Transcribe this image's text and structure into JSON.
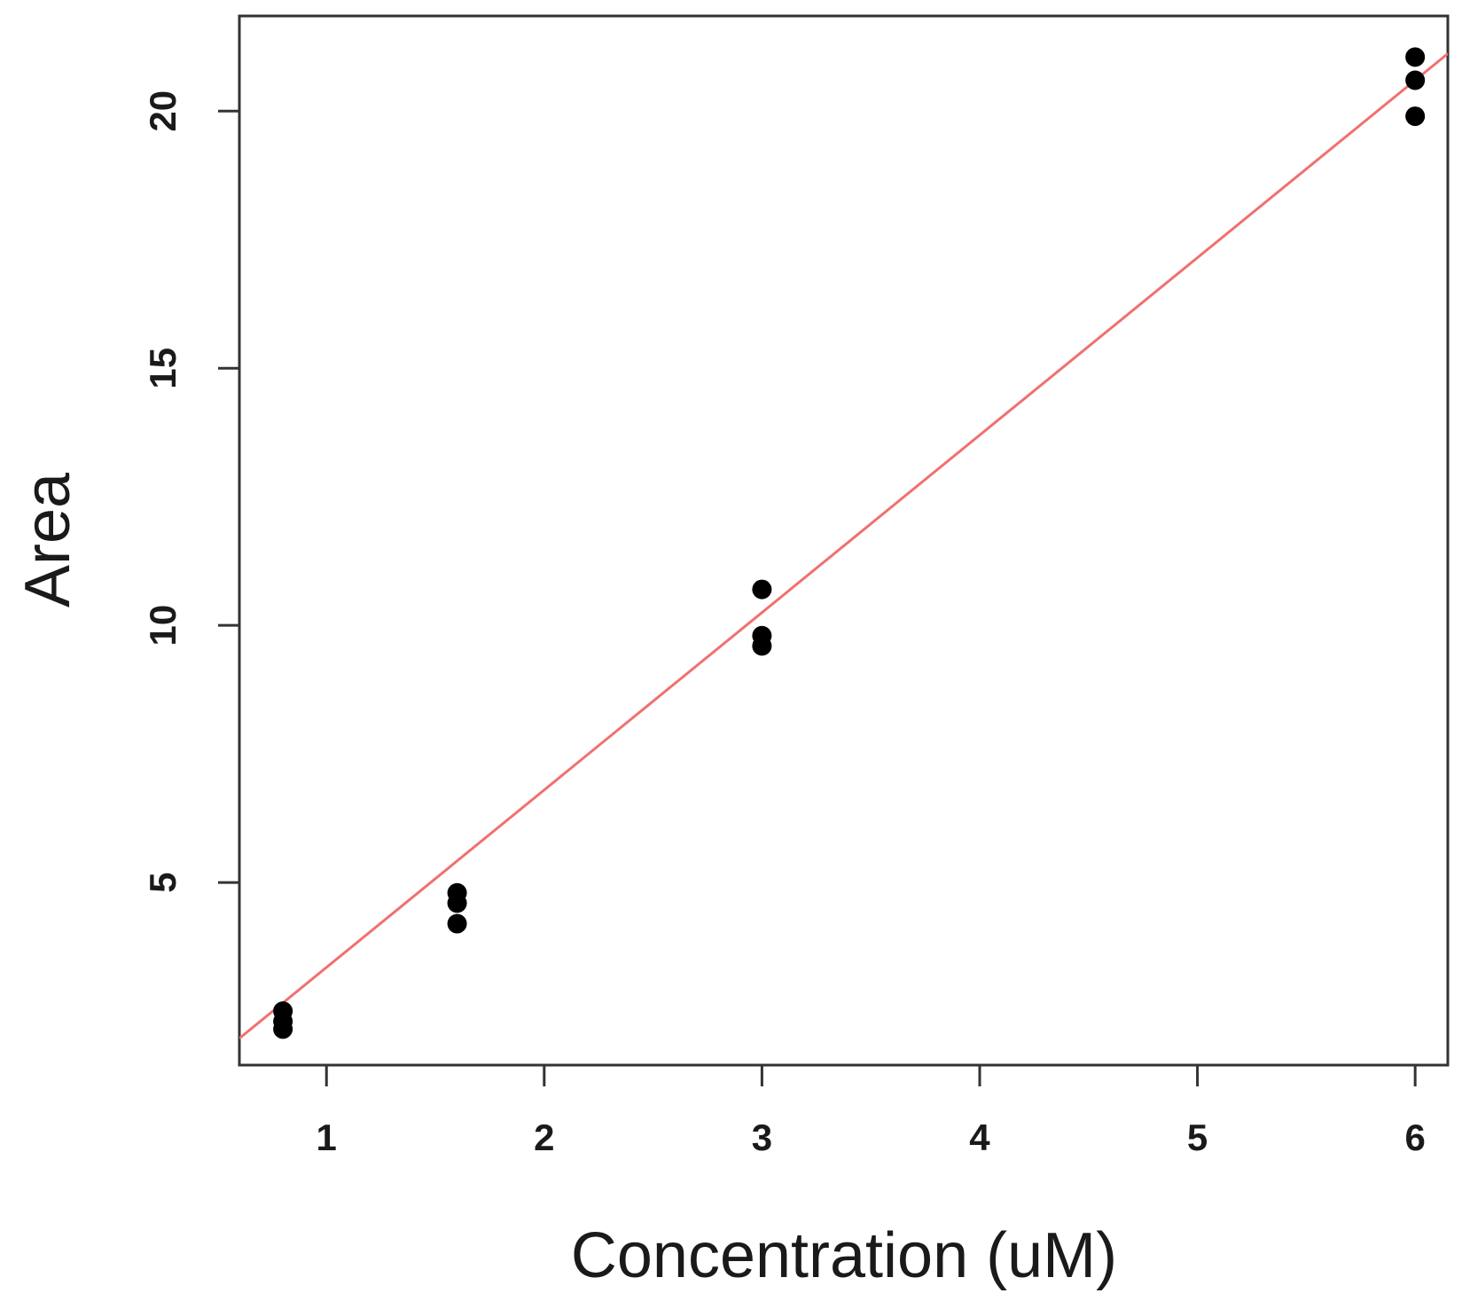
{
  "chart_data": {
    "type": "scatter",
    "title": "",
    "xlabel": "Concentration (uM)",
    "ylabel": "Area",
    "xlim": [
      0.6,
      6.15
    ],
    "ylim": [
      1.45,
      21.85
    ],
    "xticks": [
      1,
      2,
      3,
      4,
      5,
      6
    ],
    "yticks": [
      5,
      10,
      15,
      20
    ],
    "grid": false,
    "legend": "none",
    "points": [
      {
        "x": 0.8,
        "y": 2.5
      },
      {
        "x": 0.8,
        "y": 2.3
      },
      {
        "x": 0.8,
        "y": 2.15
      },
      {
        "x": 1.6,
        "y": 4.8
      },
      {
        "x": 1.6,
        "y": 4.6
      },
      {
        "x": 1.6,
        "y": 4.2
      },
      {
        "x": 3.0,
        "y": 10.7
      },
      {
        "x": 3.0,
        "y": 9.8
      },
      {
        "x": 3.0,
        "y": 9.6
      },
      {
        "x": 6.0,
        "y": 21.05
      },
      {
        "x": 6.0,
        "y": 20.6
      },
      {
        "x": 6.0,
        "y": 19.9
      }
    ],
    "fit_line": {
      "intercept": -0.1,
      "slope": 3.45
    },
    "colors": {
      "points": "#000000",
      "fit_line": "#f07070",
      "axes": "#333333"
    }
  }
}
